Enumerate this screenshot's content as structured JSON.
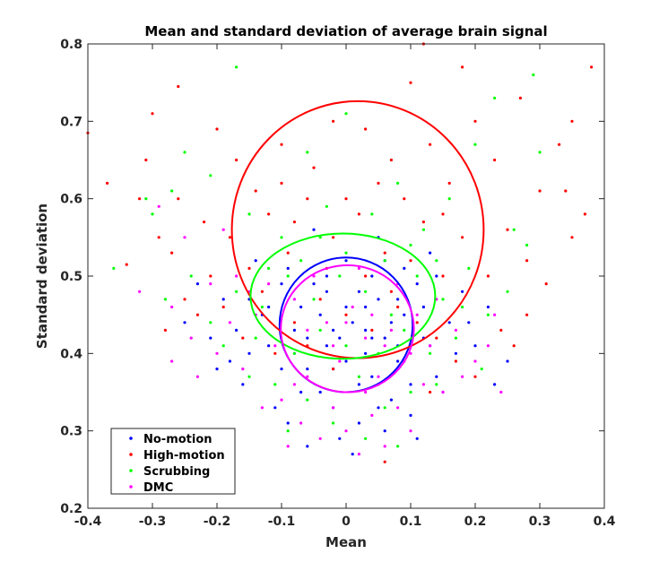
{
  "chart_data": {
    "type": "scatter",
    "title": "Mean and standard deviation of average brain signal",
    "xlabel": "Mean",
    "ylabel": "Standard deviation",
    "xlim": [
      -0.4,
      0.4
    ],
    "ylim": [
      0.2,
      0.8
    ],
    "xticks": [
      -0.4,
      -0.3,
      -0.2,
      -0.1,
      0,
      0.1,
      0.2,
      0.3,
      0.4
    ],
    "xtick_labels": [
      "-0.4",
      "-0.3",
      "-0.2",
      "-0.1",
      "0",
      "0.1",
      "0.2",
      "0.3",
      "0.4"
    ],
    "yticks": [
      0.2,
      0.3,
      0.4,
      0.5,
      0.6,
      0.7,
      0.8
    ],
    "ytick_labels": [
      "0.2",
      "0.3",
      "0.4",
      "0.5",
      "0.6",
      "0.7",
      "0.8"
    ],
    "legend_position": "bottom-left",
    "series": [
      {
        "name": "No-motion",
        "color": "#0000ff",
        "ellipse": {
          "cx": 0.0,
          "cy": 0.437,
          "rx": 0.103,
          "ry": 0.087
        },
        "points": [
          [
            0.01,
            0.44
          ],
          [
            -0.03,
            0.41
          ],
          [
            0.05,
            0.47
          ],
          [
            -0.08,
            0.43
          ],
          [
            0.08,
            0.39
          ],
          [
            -0.05,
            0.49
          ],
          [
            0.02,
            0.36
          ],
          [
            0.09,
            0.45
          ],
          [
            -0.1,
            0.38
          ],
          [
            0.12,
            0.42
          ],
          [
            -0.12,
            0.46
          ],
          [
            0.04,
            0.5
          ],
          [
            -0.02,
            0.33
          ],
          [
            0.07,
            0.34
          ],
          [
            -0.07,
            0.35
          ],
          [
            0.14,
            0.37
          ],
          [
            -0.15,
            0.4
          ],
          [
            0.0,
            0.52
          ],
          [
            0.11,
            0.49
          ],
          [
            -0.09,
            0.51
          ],
          [
            0.03,
            0.4
          ],
          [
            -0.04,
            0.45
          ],
          [
            0.06,
            0.42
          ],
          [
            -0.06,
            0.38
          ],
          [
            0.16,
            0.44
          ],
          [
            -0.17,
            0.43
          ],
          [
            0.02,
            0.31
          ],
          [
            -0.01,
            0.29
          ],
          [
            0.1,
            0.32
          ],
          [
            -0.11,
            0.33
          ],
          [
            0.18,
            0.48
          ],
          [
            -0.19,
            0.47
          ],
          [
            0.05,
            0.55
          ],
          [
            -0.05,
            0.56
          ],
          [
            0.13,
            0.53
          ],
          [
            -0.14,
            0.52
          ],
          [
            0.0,
            0.39
          ],
          [
            0.03,
            0.46
          ],
          [
            -0.03,
            0.48
          ],
          [
            0.08,
            0.41
          ],
          [
            -0.08,
            0.4
          ],
          [
            0.15,
            0.35
          ],
          [
            -0.16,
            0.36
          ],
          [
            0.2,
            0.41
          ],
          [
            -0.21,
            0.42
          ],
          [
            0.06,
            0.3
          ],
          [
            -0.06,
            0.28
          ],
          [
            0.01,
            0.27
          ],
          [
            0.12,
            0.46
          ],
          [
            -0.13,
            0.45
          ],
          [
            0.04,
            0.37
          ],
          [
            -0.02,
            0.43
          ],
          [
            0.09,
            0.51
          ],
          [
            -0.1,
            0.49
          ],
          [
            0.22,
            0.46
          ],
          [
            -0.23,
            0.49
          ],
          [
            0.17,
            0.4
          ],
          [
            -0.18,
            0.39
          ],
          [
            0.07,
            0.44
          ],
          [
            -0.07,
            0.46
          ],
          [
            0.1,
            0.36
          ],
          [
            -0.04,
            0.35
          ],
          [
            0.02,
            0.48
          ],
          [
            -0.01,
            0.42
          ],
          [
            0.14,
            0.5
          ],
          [
            -0.12,
            0.41
          ],
          [
            0.25,
            0.39
          ],
          [
            0.23,
            0.36
          ],
          [
            -0.25,
            0.44
          ],
          [
            0.05,
            0.33
          ],
          [
            -0.09,
            0.31
          ],
          [
            0.11,
            0.29
          ],
          [
            0.0,
            0.46
          ],
          [
            0.03,
            0.43
          ],
          [
            -0.06,
            0.42
          ],
          [
            0.08,
            0.47
          ],
          [
            -0.03,
            0.5
          ],
          [
            0.06,
            0.52
          ],
          [
            0.13,
            0.41
          ],
          [
            -0.15,
            0.47
          ],
          [
            0.19,
            0.44
          ],
          [
            -0.2,
            0.38
          ],
          [
            0.04,
            0.42
          ],
          [
            -0.02,
            0.38
          ]
        ]
      },
      {
        "name": "High-motion",
        "color": "#ff0000",
        "ellipse": {
          "cx": 0.018,
          "cy": 0.56,
          "rx": 0.195,
          "ry": 0.166
        },
        "points": [
          [
            -0.4,
            0.685
          ],
          [
            -0.37,
            0.62
          ],
          [
            -0.34,
            0.515
          ],
          [
            -0.3,
            0.71
          ],
          [
            -0.31,
            0.65
          ],
          [
            -0.26,
            0.745
          ],
          [
            -0.2,
            0.69
          ],
          [
            -0.17,
            0.65
          ],
          [
            -0.29,
            0.55
          ],
          [
            -0.26,
            0.6
          ],
          [
            -0.22,
            0.57
          ],
          [
            -0.25,
            0.47
          ],
          [
            -0.14,
            0.61
          ],
          [
            -0.1,
            0.67
          ],
          [
            -0.05,
            0.64
          ],
          [
            -0.02,
            0.7
          ],
          [
            0.03,
            0.69
          ],
          [
            0.07,
            0.65
          ],
          [
            0.1,
            0.75
          ],
          [
            0.13,
            0.67
          ],
          [
            0.16,
            0.62
          ],
          [
            0.18,
            0.77
          ],
          [
            0.2,
            0.7
          ],
          [
            0.23,
            0.65
          ],
          [
            0.27,
            0.73
          ],
          [
            0.3,
            0.61
          ],
          [
            0.34,
            0.61
          ],
          [
            0.35,
            0.7
          ],
          [
            0.37,
            0.58
          ],
          [
            0.38,
            0.77
          ],
          [
            0.35,
            0.55
          ],
          [
            0.31,
            0.49
          ],
          [
            0.28,
            0.45
          ],
          [
            0.26,
            0.41
          ],
          [
            0.22,
            0.5
          ],
          [
            0.18,
            0.55
          ],
          [
            0.15,
            0.5
          ],
          [
            0.12,
            0.57
          ],
          [
            0.09,
            0.6
          ],
          [
            0.06,
            0.53
          ],
          [
            0.02,
            0.58
          ],
          [
            -0.02,
            0.55
          ],
          [
            -0.06,
            0.6
          ],
          [
            -0.09,
            0.53
          ],
          [
            -0.12,
            0.58
          ],
          [
            -0.15,
            0.51
          ],
          [
            -0.18,
            0.55
          ],
          [
            -0.21,
            0.5
          ],
          [
            -0.28,
            0.43
          ],
          [
            -0.23,
            0.45
          ],
          [
            -0.19,
            0.46
          ],
          [
            -0.13,
            0.48
          ],
          [
            -0.08,
            0.44
          ],
          [
            -0.04,
            0.47
          ],
          [
            0.0,
            0.45
          ],
          [
            0.04,
            0.43
          ],
          [
            0.08,
            0.46
          ],
          [
            0.11,
            0.44
          ],
          [
            0.14,
            0.42
          ],
          [
            0.17,
            0.39
          ],
          [
            0.2,
            0.37
          ],
          [
            0.24,
            0.43
          ],
          [
            -0.02,
            0.38
          ],
          [
            -0.06,
            0.41
          ],
          [
            0.05,
            0.36
          ],
          [
            0.13,
            0.35
          ],
          [
            -0.11,
            0.4
          ],
          [
            -0.16,
            0.42
          ],
          [
            0.1,
            0.52
          ],
          [
            -0.03,
            0.51
          ],
          [
            0.07,
            0.48
          ],
          [
            0.03,
            0.5
          ],
          [
            0.12,
            0.8
          ],
          [
            0.0,
            0.6
          ],
          [
            -0.08,
            0.57
          ],
          [
            0.05,
            0.62
          ],
          [
            0.15,
            0.58
          ],
          [
            -0.1,
            0.62
          ],
          [
            0.25,
            0.56
          ],
          [
            0.28,
            0.52
          ],
          [
            -0.32,
            0.6
          ],
          [
            -0.27,
            0.53
          ],
          [
            0.33,
            0.67
          ],
          [
            0.06,
            0.26
          ]
        ]
      },
      {
        "name": "Scrubbing",
        "color": "#00ff00",
        "ellipse": {
          "cx": -0.005,
          "cy": 0.474,
          "rx": 0.143,
          "ry": 0.081
        },
        "points": [
          [
            -0.17,
            0.77
          ],
          [
            -0.27,
            0.61
          ],
          [
            -0.31,
            0.6
          ],
          [
            -0.36,
            0.51
          ],
          [
            -0.3,
            0.58
          ],
          [
            -0.25,
            0.66
          ],
          [
            -0.21,
            0.63
          ],
          [
            -0.15,
            0.58
          ],
          [
            -0.1,
            0.55
          ],
          [
            -0.06,
            0.66
          ],
          [
            -0.03,
            0.59
          ],
          [
            0.0,
            0.71
          ],
          [
            0.04,
            0.58
          ],
          [
            0.08,
            0.62
          ],
          [
            0.12,
            0.56
          ],
          [
            0.16,
            0.6
          ],
          [
            0.2,
            0.67
          ],
          [
            0.23,
            0.73
          ],
          [
            0.26,
            0.56
          ],
          [
            0.29,
            0.76
          ],
          [
            0.3,
            0.66
          ],
          [
            0.28,
            0.54
          ],
          [
            0.25,
            0.48
          ],
          [
            0.22,
            0.45
          ],
          [
            0.19,
            0.51
          ],
          [
            0.15,
            0.47
          ],
          [
            0.11,
            0.5
          ],
          [
            0.07,
            0.45
          ],
          [
            0.03,
            0.48
          ],
          [
            -0.01,
            0.5
          ],
          [
            -0.05,
            0.47
          ],
          [
            -0.09,
            0.5
          ],
          [
            -0.13,
            0.46
          ],
          [
            -0.17,
            0.48
          ],
          [
            -0.21,
            0.44
          ],
          [
            -0.24,
            0.5
          ],
          [
            -0.28,
            0.47
          ],
          [
            -0.19,
            0.41
          ],
          [
            -0.14,
            0.42
          ],
          [
            -0.08,
            0.4
          ],
          [
            -0.04,
            0.43
          ],
          [
            0.0,
            0.41
          ],
          [
            0.05,
            0.4
          ],
          [
            0.09,
            0.43
          ],
          [
            0.13,
            0.4
          ],
          [
            0.17,
            0.42
          ],
          [
            0.21,
            0.38
          ],
          [
            -0.11,
            0.36
          ],
          [
            -0.06,
            0.34
          ],
          [
            0.02,
            0.37
          ],
          [
            0.06,
            0.33
          ],
          [
            0.1,
            0.35
          ],
          [
            -0.15,
            0.37
          ],
          [
            0.14,
            0.36
          ],
          [
            -0.02,
            0.31
          ],
          [
            0.03,
            0.29
          ],
          [
            -0.09,
            0.3
          ],
          [
            0.08,
            0.28
          ],
          [
            0.0,
            0.53
          ],
          [
            -0.04,
            0.55
          ],
          [
            0.06,
            0.52
          ],
          [
            0.1,
            0.54
          ],
          [
            -0.07,
            0.52
          ],
          [
            0.14,
            0.52
          ],
          [
            -0.12,
            0.51
          ],
          [
            0.18,
            0.46
          ]
        ]
      },
      {
        "name": "DMC",
        "color": "#ff00ff",
        "ellipse": {
          "cx": 0.002,
          "cy": 0.432,
          "rx": 0.103,
          "ry": 0.082
        },
        "points": [
          [
            -0.32,
            0.48
          ],
          [
            -0.29,
            0.59
          ],
          [
            -0.27,
            0.46
          ],
          [
            -0.24,
            0.42
          ],
          [
            -0.21,
            0.49
          ],
          [
            -0.18,
            0.44
          ],
          [
            -0.16,
            0.38
          ],
          [
            -0.14,
            0.45
          ],
          [
            -0.11,
            0.41
          ],
          [
            -0.08,
            0.47
          ],
          [
            -0.06,
            0.37
          ],
          [
            -0.03,
            0.44
          ],
          [
            -0.01,
            0.39
          ],
          [
            0.01,
            0.46
          ],
          [
            0.03,
            0.42
          ],
          [
            0.05,
            0.37
          ],
          [
            0.07,
            0.43
          ],
          [
            0.09,
            0.39
          ],
          [
            0.11,
            0.45
          ],
          [
            0.13,
            0.41
          ],
          [
            0.15,
            0.35
          ],
          [
            0.17,
            0.43
          ],
          [
            0.2,
            0.39
          ],
          [
            0.23,
            0.45
          ],
          [
            -0.1,
            0.34
          ],
          [
            -0.07,
            0.31
          ],
          [
            -0.04,
            0.29
          ],
          [
            -0.02,
            0.33
          ],
          [
            0.0,
            0.3
          ],
          [
            0.02,
            0.27
          ],
          [
            0.04,
            0.32
          ],
          [
            0.06,
            0.28
          ],
          [
            0.08,
            0.33
          ],
          [
            0.1,
            0.3
          ],
          [
            -0.13,
            0.33
          ],
          [
            -0.09,
            0.28
          ],
          [
            -0.12,
            0.49
          ],
          [
            -0.05,
            0.5
          ],
          [
            0.02,
            0.51
          ],
          [
            0.08,
            0.49
          ],
          [
            0.14,
            0.47
          ],
          [
            -0.17,
            0.5
          ],
          [
            0.0,
            0.44
          ],
          [
            -0.02,
            0.41
          ],
          [
            0.04,
            0.45
          ],
          [
            -0.06,
            0.43
          ],
          [
            0.06,
            0.41
          ],
          [
            0.1,
            0.4
          ],
          [
            -0.2,
            0.4
          ],
          [
            0.18,
            0.37
          ],
          [
            0.22,
            0.41
          ],
          [
            -0.23,
            0.37
          ],
          [
            0.24,
            0.35
          ],
          [
            -0.27,
            0.39
          ],
          [
            -0.19,
            0.56
          ],
          [
            -0.25,
            0.55
          ],
          [
            0.12,
            0.36
          ],
          [
            -0.15,
            0.48
          ],
          [
            0.03,
            0.35
          ],
          [
            -0.08,
            0.36
          ]
        ]
      }
    ]
  }
}
